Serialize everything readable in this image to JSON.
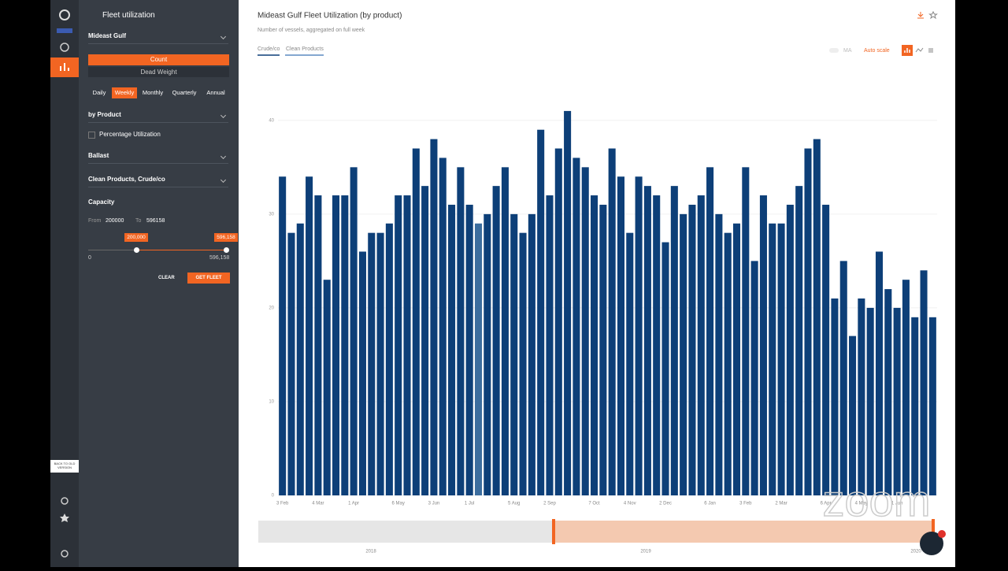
{
  "sidebar": {
    "title": "Fleet utilization",
    "region": "Mideast Gulf",
    "measure_options": [
      "Count",
      "Dead Weight"
    ],
    "periods": [
      "Daily",
      "Weekly",
      "Monthly",
      "Quarterly",
      "Annual"
    ],
    "grouping": "by Product",
    "percentage_label": "Percentage Utilization",
    "ballast": "Ballast",
    "products": "Clean Products, Crude/co",
    "capacity": {
      "title": "Capacity",
      "from_label": "From",
      "from_value": "200000",
      "to_label": "To",
      "to_value": "596158",
      "handle_low": "200,000",
      "handle_high": "596,158",
      "min_label": "0",
      "max_label": "596,158"
    },
    "clear": "CLEAR",
    "get_fleet": "GET FLEET",
    "back_link": "BACK TO OLD VERSION"
  },
  "toolbar": {
    "tabs": [
      "Crude/co",
      "Clean Products"
    ],
    "ma": "MA",
    "auto_scale": "Auto scale"
  },
  "navigator": {
    "labels": [
      "2018",
      "2019",
      "2020"
    ]
  },
  "watermark": "zoom",
  "chart_data": {
    "type": "bar",
    "title": "Mideast Gulf Fleet Utilization (by product)",
    "subtitle": "Number of vessels, aggregated on full week",
    "color": "#0d3f78",
    "highlight_color": "#3c6d9e",
    "categories": [
      "3 Feb",
      null,
      null,
      null,
      "4 Mar",
      null,
      null,
      null,
      "1 Apr",
      null,
      null,
      null,
      null,
      "6 May",
      null,
      null,
      null,
      "3 Jun",
      null,
      null,
      null,
      "1 Jul",
      null,
      null,
      null,
      null,
      "5 Aug",
      null,
      null,
      null,
      "2 Sep",
      null,
      null,
      null,
      null,
      "7 Oct",
      null,
      null,
      null,
      "4 Nov",
      null,
      null,
      null,
      "2 Dec",
      null,
      null,
      null,
      null,
      "6 Jan",
      null,
      null,
      null,
      "3 Feb",
      null,
      null,
      null,
      "2 Mar",
      null,
      null,
      null,
      null,
      "6 Apr",
      null,
      null,
      null,
      "4 May",
      null,
      null,
      null,
      "1 Jun",
      null,
      null,
      null,
      null
    ],
    "values": [
      34,
      28,
      29,
      34,
      32,
      23,
      32,
      32,
      35,
      26,
      28,
      28,
      29,
      32,
      32,
      37,
      33,
      38,
      36,
      31,
      35,
      31,
      29,
      30,
      33,
      35,
      30,
      28,
      30,
      39,
      32,
      37,
      41,
      36,
      35,
      32,
      31,
      37,
      34,
      28,
      34,
      33,
      32,
      27,
      33,
      30,
      31,
      32,
      35,
      30,
      28,
      29,
      35,
      25,
      32,
      29,
      29,
      31,
      33,
      37,
      38,
      31,
      21,
      25,
      17,
      21,
      20,
      26,
      22,
      20,
      23,
      19,
      24,
      19
    ],
    "ylim": [
      0,
      42
    ],
    "yticks": [
      0,
      10,
      20,
      30,
      40
    ],
    "grid": true
  }
}
